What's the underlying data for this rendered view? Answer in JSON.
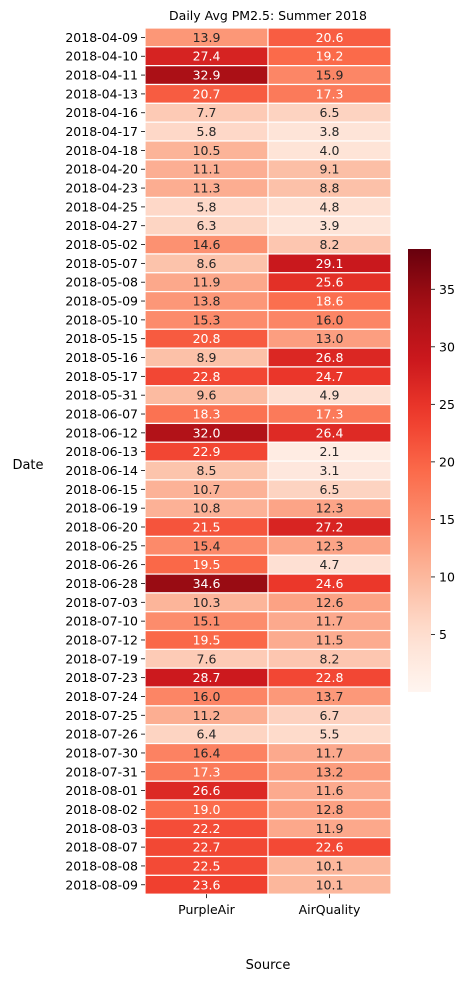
{
  "chart_data": {
    "type": "heatmap",
    "title": "Daily Avg PM2.5: Summer 2018",
    "xlabel": "Source",
    "ylabel": "Date",
    "columns": [
      "PurpleAir",
      "AirQuality"
    ],
    "rows": [
      "2018-04-09",
      "2018-04-10",
      "2018-04-11",
      "2018-04-13",
      "2018-04-16",
      "2018-04-17",
      "2018-04-18",
      "2018-04-20",
      "2018-04-23",
      "2018-04-25",
      "2018-04-27",
      "2018-05-02",
      "2018-05-07",
      "2018-05-08",
      "2018-05-09",
      "2018-05-10",
      "2018-05-15",
      "2018-05-16",
      "2018-05-17",
      "2018-05-31",
      "2018-06-07",
      "2018-06-12",
      "2018-06-13",
      "2018-06-14",
      "2018-06-15",
      "2018-06-19",
      "2018-06-20",
      "2018-06-25",
      "2018-06-26",
      "2018-06-28",
      "2018-07-03",
      "2018-07-10",
      "2018-07-12",
      "2018-07-19",
      "2018-07-23",
      "2018-07-24",
      "2018-07-25",
      "2018-07-26",
      "2018-07-30",
      "2018-07-31",
      "2018-08-01",
      "2018-08-02",
      "2018-08-03",
      "2018-08-07",
      "2018-08-08",
      "2018-08-09"
    ],
    "values": [
      [
        13.9,
        20.6
      ],
      [
        27.4,
        19.2
      ],
      [
        32.9,
        15.9
      ],
      [
        20.7,
        17.3
      ],
      [
        7.7,
        6.5
      ],
      [
        5.8,
        3.8
      ],
      [
        10.5,
        4.0
      ],
      [
        11.1,
        9.1
      ],
      [
        11.3,
        8.8
      ],
      [
        5.8,
        4.8
      ],
      [
        6.3,
        3.9
      ],
      [
        14.6,
        8.2
      ],
      [
        8.6,
        29.1
      ],
      [
        11.9,
        25.6
      ],
      [
        13.8,
        18.6
      ],
      [
        15.3,
        16.0
      ],
      [
        20.8,
        13.0
      ],
      [
        8.9,
        26.8
      ],
      [
        22.8,
        24.7
      ],
      [
        9.6,
        4.9
      ],
      [
        18.3,
        17.3
      ],
      [
        32.0,
        26.4
      ],
      [
        22.9,
        2.1
      ],
      [
        8.5,
        3.1
      ],
      [
        10.7,
        6.5
      ],
      [
        10.8,
        12.3
      ],
      [
        21.5,
        27.2
      ],
      [
        15.4,
        12.3
      ],
      [
        19.5,
        4.7
      ],
      [
        34.6,
        24.6
      ],
      [
        10.3,
        12.6
      ],
      [
        15.1,
        11.7
      ],
      [
        19.5,
        11.5
      ],
      [
        7.6,
        8.2
      ],
      [
        28.7,
        22.8
      ],
      [
        16.0,
        13.7
      ],
      [
        11.2,
        6.7
      ],
      [
        6.4,
        5.5
      ],
      [
        16.4,
        11.7
      ],
      [
        17.3,
        13.2
      ],
      [
        26.6,
        11.6
      ],
      [
        19.0,
        12.8
      ],
      [
        22.2,
        11.9
      ],
      [
        22.7,
        22.6
      ],
      [
        22.5,
        10.1
      ],
      [
        23.6,
        10.1
      ]
    ],
    "colorbar": {
      "colormap": "Reds",
      "vmin": 0,
      "vmax": 38.5,
      "ticks": [
        5,
        10,
        15,
        20,
        25,
        30,
        35
      ]
    }
  }
}
